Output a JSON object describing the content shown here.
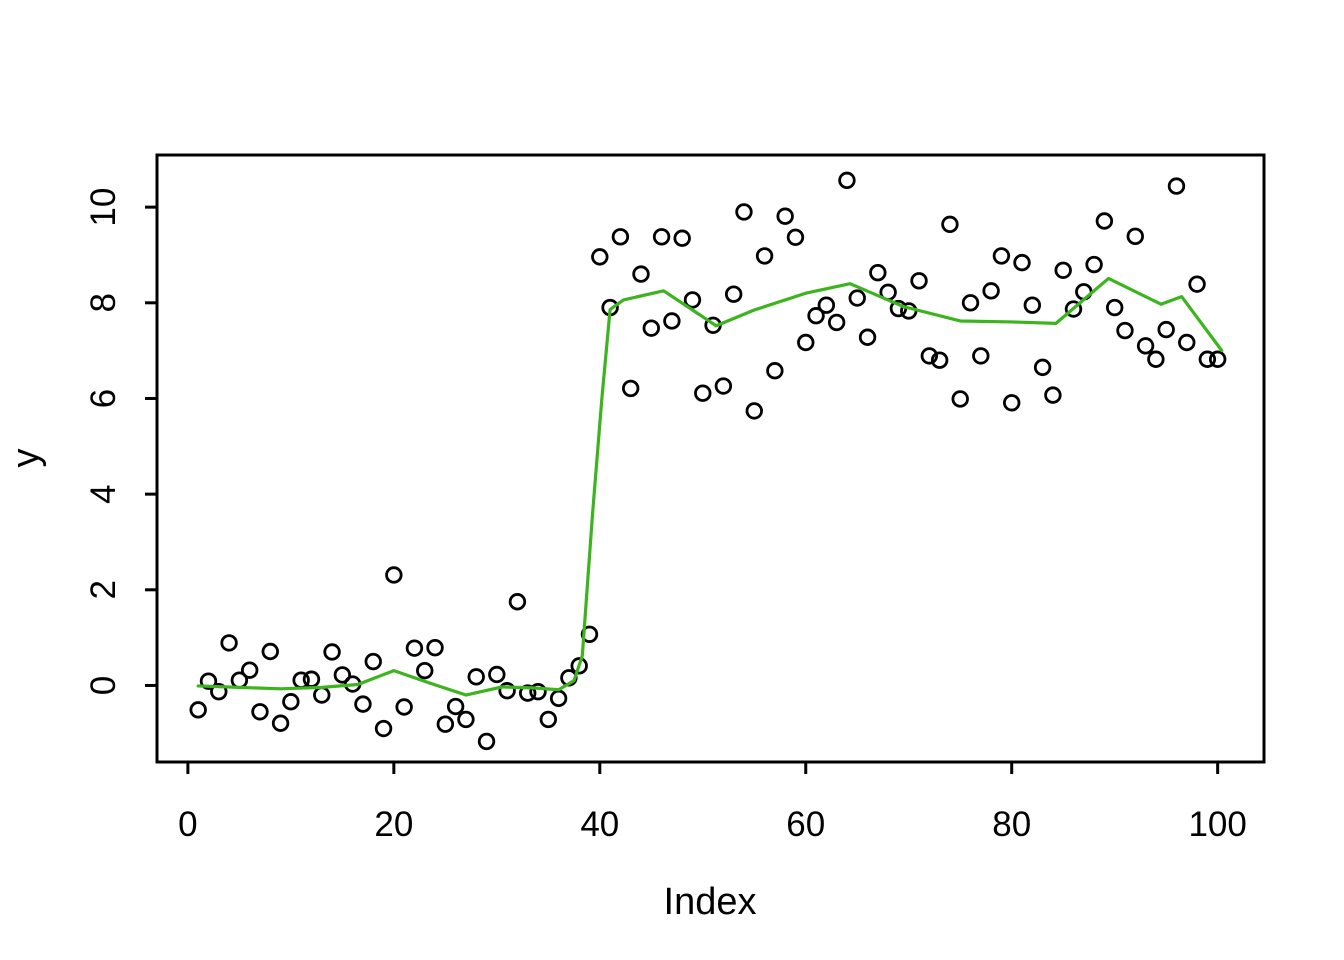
{
  "figure": {
    "background": "#ffffff"
  },
  "colors": {
    "point_stroke": "#000000",
    "smooth_line": "#3cb41e",
    "axis": "#000000"
  },
  "chart_data": {
    "type": "scatter",
    "title": "",
    "xlabel": "Index",
    "ylabel": "y",
    "xlim": [
      -3.0,
      104.5
    ],
    "ylim": [
      -1.6,
      11.09
    ],
    "x_ticks": [
      0,
      20,
      40,
      60,
      80,
      100
    ],
    "y_ticks": [
      0,
      2,
      4,
      6,
      8,
      10
    ],
    "grid": false,
    "legend": "none",
    "marker": "open-circle",
    "series": [
      {
        "name": "y",
        "type": "points",
        "color": "#000000",
        "x": [
          1,
          2,
          3,
          4,
          5,
          6,
          7,
          8,
          9,
          10,
          11,
          12,
          13,
          14,
          15,
          16,
          17,
          18,
          19,
          20,
          21,
          22,
          23,
          24,
          25,
          26,
          27,
          28,
          29,
          30,
          31,
          32,
          33,
          34,
          35,
          36,
          37,
          38,
          39,
          40,
          41,
          42,
          43,
          44,
          45,
          46,
          47,
          48,
          49,
          50,
          51,
          52,
          53,
          54,
          55,
          56,
          57,
          58,
          59,
          60,
          61,
          62,
          63,
          64,
          65,
          66,
          67,
          68,
          69,
          70,
          71,
          72,
          73,
          74,
          75,
          76,
          77,
          78,
          79,
          80,
          81,
          82,
          83,
          84,
          85,
          86,
          87,
          88,
          89,
          90,
          91,
          92,
          93,
          94,
          95,
          96,
          97,
          98,
          99,
          100
        ],
        "y": [
          -0.51,
          0.09,
          -0.13,
          0.89,
          0.11,
          0.32,
          -0.55,
          0.71,
          -0.79,
          -0.34,
          0.11,
          0.13,
          -0.2,
          0.7,
          0.22,
          0.03,
          -0.39,
          0.5,
          -0.9,
          2.31,
          -0.45,
          0.78,
          0.31,
          0.79,
          -0.81,
          -0.44,
          -0.71,
          0.18,
          -1.17,
          0.23,
          -0.11,
          1.75,
          -0.16,
          -0.13,
          -0.71,
          -0.27,
          0.16,
          0.41,
          1.07,
          8.96,
          7.9,
          9.38,
          6.21,
          8.6,
          7.47,
          9.38,
          7.62,
          9.35,
          8.06,
          6.11,
          7.53,
          6.26,
          8.18,
          9.9,
          5.74,
          8.98,
          6.58,
          9.81,
          9.37,
          7.17,
          7.73,
          7.95,
          7.59,
          10.56,
          8.1,
          7.28,
          8.63,
          8.22,
          7.88,
          7.83,
          8.46,
          6.89,
          6.8,
          9.64,
          5.99,
          8.0,
          6.89,
          8.25,
          8.98,
          5.91,
          8.84,
          7.95,
          6.65,
          6.07,
          8.68,
          7.87,
          8.23,
          8.8,
          9.71,
          7.9,
          7.42,
          9.39,
          7.1,
          6.82,
          7.44,
          10.44,
          7.17,
          8.39,
          6.82,
          6.82
        ]
      },
      {
        "name": "smooth-fit",
        "type": "line",
        "color": "#3cb41e",
        "x": [
          1,
          5,
          9,
          13,
          16.5,
          20,
          23.5,
          27,
          30.5,
          33.5,
          36,
          37.5,
          38.3,
          39.3,
          40.2,
          41,
          42.3,
          46.2,
          51.3,
          55,
          60,
          64.3,
          69.5,
          75,
          80,
          84.3,
          89.4,
          94.5,
          96.5,
          100.4
        ],
        "y": [
          -0.01,
          -0.04,
          -0.07,
          -0.04,
          0.02,
          0.31,
          0.05,
          -0.2,
          -0.03,
          -0.05,
          -0.09,
          0.1,
          0.62,
          3.6,
          6.0,
          7.86,
          8.06,
          8.25,
          7.52,
          7.85,
          8.2,
          8.4,
          7.92,
          7.62,
          7.6,
          7.57,
          8.51,
          7.97,
          8.13,
          7.0
        ]
      }
    ]
  }
}
